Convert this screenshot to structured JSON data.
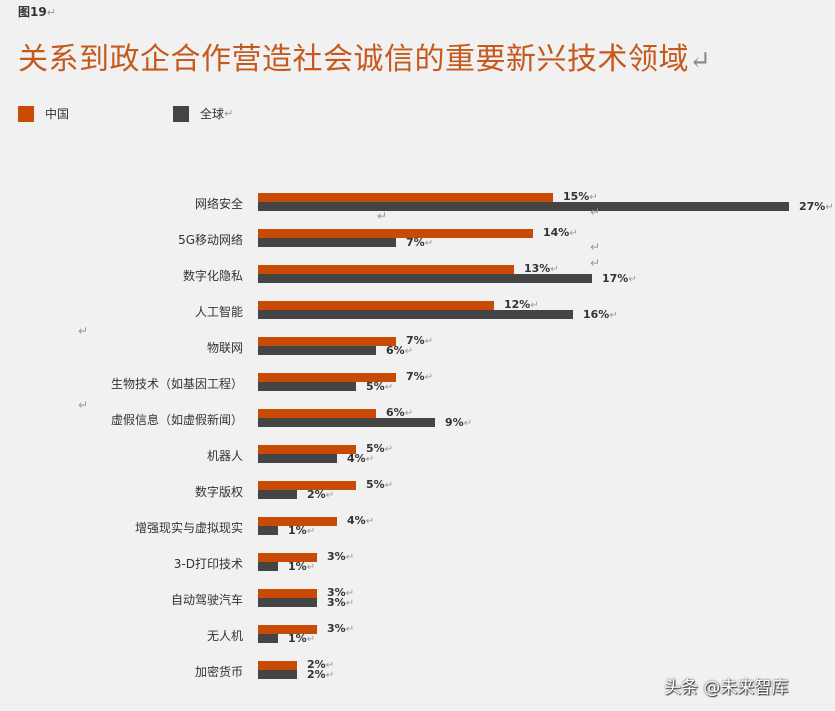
{
  "figure_label": "图19",
  "title": "关系到政企合作营造社会诚信的重要新兴技术领域",
  "legend": [
    {
      "label": "中国",
      "color": "#c84a05"
    },
    {
      "label": "全球",
      "color": "#444444"
    }
  ],
  "watermark": "头条 @未来智库",
  "chart_data": {
    "type": "bar",
    "orientation": "horizontal",
    "title": "关系到政企合作营造社会诚信的重要新兴技术领域",
    "xlabel": "",
    "ylabel": "",
    "legend_position": "top-left",
    "grid": false,
    "categories": [
      "网络安全",
      "5G移动网络",
      "数字化隐私",
      "人工智能",
      "物联网",
      "生物技术（如基因工程）",
      "虚假信息（如虚假新闻）",
      "机器人",
      "数字版权",
      "增强现实与虚拟现实",
      "3-D打印技术",
      "自动驾驶汽车",
      "无人机",
      "加密货币"
    ],
    "series": [
      {
        "name": "中国",
        "color": "#c84a05",
        "values": [
          15,
          14,
          13,
          12,
          7,
          7,
          6,
          5,
          5,
          4,
          3,
          3,
          3,
          2
        ]
      },
      {
        "name": "全球",
        "color": "#444444",
        "values": [
          27,
          7,
          17,
          16,
          6,
          5,
          9,
          4,
          2,
          1,
          1,
          3,
          1,
          2
        ]
      }
    ],
    "value_suffix": "%"
  }
}
